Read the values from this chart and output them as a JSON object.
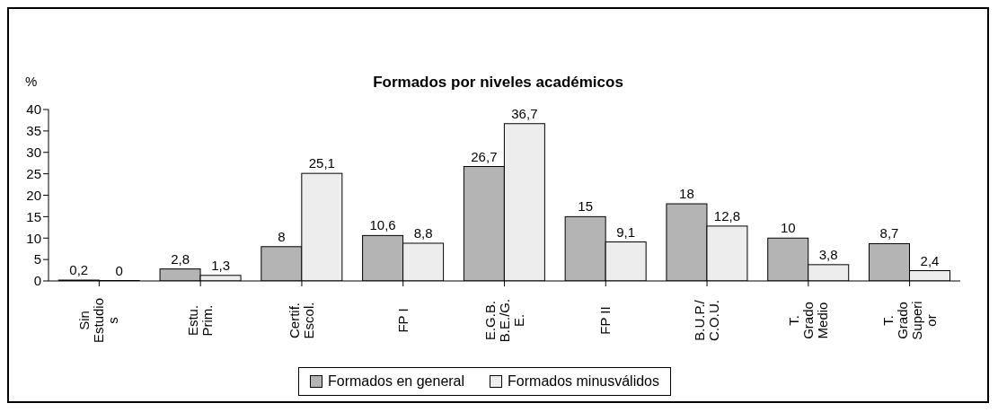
{
  "chart_data": {
    "type": "bar",
    "title": "Formados por niveles académicos",
    "ylabel": "%",
    "categories": [
      "Sin\nEstudio\ns",
      "Estu.\nPrim.",
      "Certif.\nEscol.",
      "FP I",
      "E.G.B.\nB.E./G.\nE.",
      "FP II",
      "B.U.P./\nC.O.U.",
      "T.\nGrado\nMedio",
      "T.\nGrado\nSuperi\nor"
    ],
    "series": [
      {
        "name": "Formados en general",
        "color": "#b4b4b4",
        "values": [
          0.2,
          2.8,
          8,
          10.6,
          26.7,
          15,
          18,
          10,
          8.7
        ],
        "value_labels": [
          "0,2",
          "2,8",
          "8",
          "10,6",
          "26,7",
          "15",
          "18",
          "10",
          "8,7"
        ]
      },
      {
        "name": "Formados minusválidos",
        "color": "#ededed",
        "values": [
          0,
          1.3,
          25.1,
          8.8,
          36.7,
          9.1,
          12.8,
          3.8,
          2.4
        ],
        "value_labels": [
          "0",
          "1,3",
          "25,1",
          "8,8",
          "36,7",
          "9,1",
          "12,8",
          "3,8",
          "2,4"
        ]
      }
    ],
    "ylim": [
      0,
      40
    ],
    "yticks": [
      0,
      5,
      10,
      15,
      20,
      25,
      30,
      35,
      40
    ],
    "grid": false,
    "legend": "bottom"
  }
}
